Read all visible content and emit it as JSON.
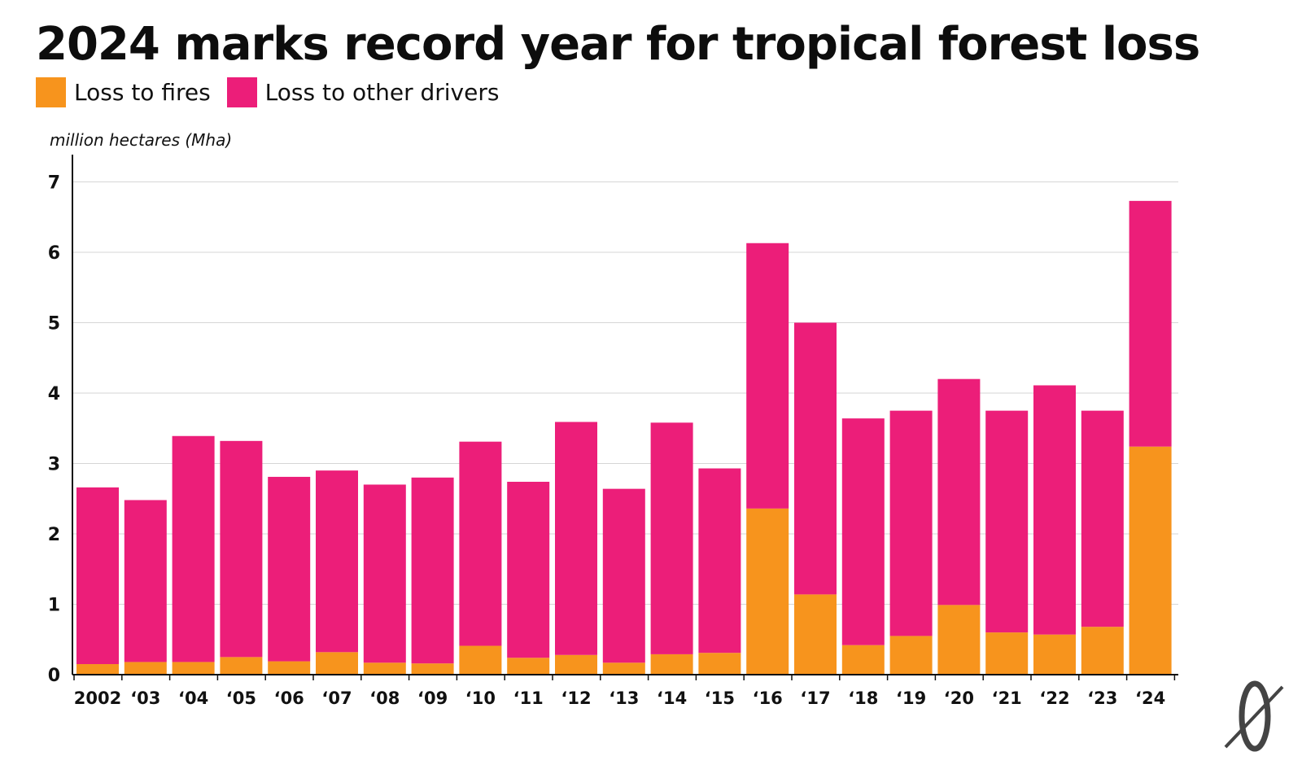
{
  "header": {
    "title": "2024 marks record year for tropical forest loss"
  },
  "legend": [
    {
      "label": "Loss to fires",
      "color": "#f7941d"
    },
    {
      "label": "Loss to other drivers",
      "color": "#ec1e79"
    }
  ],
  "chart_data": {
    "type": "bar",
    "stacked": true,
    "ylabel": "million hectares (Mha)",
    "ylim": [
      0,
      7
    ],
    "yticks": [
      0,
      1,
      2,
      3,
      4,
      5,
      6,
      7
    ],
    "grid": true,
    "legend_position": "top-left",
    "categories": [
      "2002",
      "‘03",
      "‘04",
      "‘05",
      "‘06",
      "‘07",
      "‘08",
      "‘09",
      "‘10",
      "‘11",
      "‘12",
      "‘13",
      "‘14",
      "‘15",
      "‘16",
      "‘17",
      "‘18",
      "‘19",
      "‘20",
      "‘21",
      "‘22",
      "‘23",
      "‘24"
    ],
    "series": [
      {
        "name": "Loss to fires",
        "color": "#f7941d",
        "values": [
          0.15,
          0.18,
          0.18,
          0.25,
          0.19,
          0.32,
          0.17,
          0.16,
          0.41,
          0.24,
          0.28,
          0.17,
          0.29,
          0.31,
          2.36,
          1.14,
          0.42,
          0.55,
          0.99,
          0.6,
          0.57,
          0.68,
          3.24
        ]
      },
      {
        "name": "Loss to other drivers",
        "color": "#ec1e79",
        "values": [
          2.51,
          2.3,
          3.21,
          3.07,
          2.62,
          2.58,
          2.53,
          2.64,
          2.9,
          2.5,
          3.31,
          2.47,
          3.29,
          2.62,
          3.77,
          3.86,
          3.22,
          3.2,
          3.21,
          3.15,
          3.54,
          3.07,
          3.49
        ]
      }
    ]
  },
  "logo": {
    "icon": "publisher-logo-icon"
  }
}
